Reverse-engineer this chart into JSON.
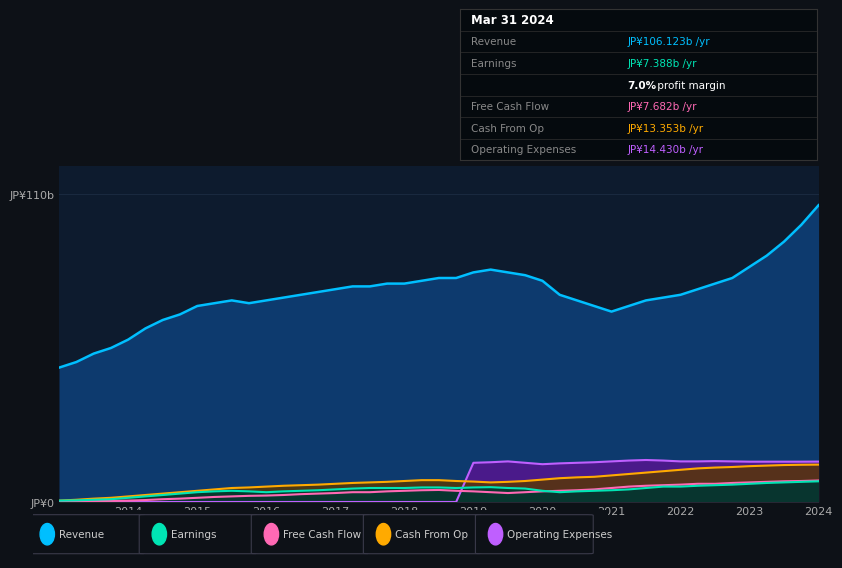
{
  "bg_color": "#0d1117",
  "plot_bg_color": "#0d1b2e",
  "years": [
    2013.0,
    2013.25,
    2013.5,
    2013.75,
    2014.0,
    2014.25,
    2014.5,
    2014.75,
    2015.0,
    2015.25,
    2015.5,
    2015.75,
    2016.0,
    2016.25,
    2016.5,
    2016.75,
    2017.0,
    2017.25,
    2017.5,
    2017.75,
    2018.0,
    2018.25,
    2018.5,
    2018.75,
    2019.0,
    2019.25,
    2019.5,
    2019.75,
    2020.0,
    2020.25,
    2020.5,
    2020.75,
    2021.0,
    2021.25,
    2021.5,
    2021.75,
    2022.0,
    2022.25,
    2022.5,
    2022.75,
    2023.0,
    2023.25,
    2023.5,
    2023.75,
    2024.0
  ],
  "revenue": [
    48,
    50,
    53,
    55,
    58,
    62,
    65,
    67,
    70,
    71,
    72,
    71,
    72,
    73,
    74,
    75,
    76,
    77,
    77,
    78,
    78,
    79,
    80,
    80,
    82,
    83,
    82,
    81,
    79,
    74,
    72,
    70,
    68,
    70,
    72,
    73,
    74,
    76,
    78,
    80,
    84,
    88,
    93,
    99,
    106
  ],
  "earnings": [
    0.5,
    0.6,
    0.8,
    1.0,
    1.5,
    2.0,
    2.5,
    3.0,
    3.5,
    3.8,
    4.0,
    3.8,
    3.5,
    3.8,
    4.0,
    4.2,
    4.5,
    4.8,
    5.0,
    5.0,
    5.0,
    5.2,
    5.2,
    5.0,
    5.2,
    5.3,
    5.0,
    4.8,
    4.0,
    3.5,
    3.8,
    4.0,
    4.2,
    4.5,
    5.0,
    5.5,
    5.5,
    5.8,
    6.0,
    6.2,
    6.5,
    6.8,
    7.0,
    7.2,
    7.388
  ],
  "free_cash_flow": [
    0.1,
    0.2,
    0.3,
    0.4,
    0.5,
    0.7,
    1.0,
    1.2,
    1.5,
    1.8,
    2.0,
    2.2,
    2.3,
    2.5,
    2.8,
    3.0,
    3.2,
    3.5,
    3.5,
    3.8,
    4.0,
    4.2,
    4.3,
    4.0,
    3.8,
    3.5,
    3.2,
    3.5,
    3.8,
    4.0,
    4.2,
    4.5,
    5.0,
    5.5,
    5.8,
    6.0,
    6.2,
    6.5,
    6.5,
    6.8,
    7.0,
    7.2,
    7.4,
    7.5,
    7.682
  ],
  "cash_from_op": [
    0.5,
    0.8,
    1.2,
    1.5,
    2.0,
    2.5,
    3.0,
    3.5,
    4.0,
    4.5,
    5.0,
    5.2,
    5.5,
    5.8,
    6.0,
    6.2,
    6.5,
    6.8,
    7.0,
    7.2,
    7.5,
    7.8,
    7.8,
    7.5,
    7.3,
    7.0,
    7.2,
    7.5,
    8.0,
    8.5,
    8.8,
    9.0,
    9.5,
    10.0,
    10.5,
    11.0,
    11.5,
    12.0,
    12.3,
    12.5,
    12.8,
    13.0,
    13.2,
    13.3,
    13.353
  ],
  "op_expenses": [
    0,
    0,
    0,
    0,
    0,
    0,
    0,
    0,
    0,
    0,
    0,
    0,
    0,
    0,
    0,
    0,
    0,
    0,
    0,
    0,
    0,
    0,
    0,
    0,
    14.0,
    14.2,
    14.5,
    14.0,
    13.5,
    13.8,
    14.0,
    14.2,
    14.5,
    14.8,
    15.0,
    14.8,
    14.5,
    14.5,
    14.6,
    14.5,
    14.4,
    14.4,
    14.4,
    14.4,
    14.43
  ],
  "ylim": [
    0,
    120
  ],
  "ytick_values": [
    0,
    110
  ],
  "ytick_labels": [
    "JP¥0",
    "JP¥110b"
  ],
  "xtick_years": [
    2014,
    2015,
    2016,
    2017,
    2018,
    2019,
    2020,
    2021,
    2022,
    2023,
    2024
  ],
  "revenue_line_color": "#00bfff",
  "revenue_fill_color": "#0d3a6e",
  "earnings_color": "#00e5b4",
  "fcf_color": "#ff69b4",
  "cashop_color": "#ffaa00",
  "opex_color": "#bf5fff",
  "opex_fill_color": "#4a1a8a",
  "grid_color": "#1a2a40",
  "legend_items": [
    "Revenue",
    "Earnings",
    "Free Cash Flow",
    "Cash From Op",
    "Operating Expenses"
  ],
  "legend_colors": [
    "#00bfff",
    "#00e5b4",
    "#ff69b4",
    "#ffaa00",
    "#bf5fff"
  ],
  "info_rows": [
    {
      "label": "Mar 31 2024",
      "value": "",
      "label_color": "#ffffff",
      "value_color": "#ffffff",
      "bold": true
    },
    {
      "label": "Revenue",
      "value": "JP¥106.123b /yr",
      "label_color": "#888888",
      "value_color": "#00bfff",
      "bold": false
    },
    {
      "label": "Earnings",
      "value": "JP¥7.388b /yr",
      "label_color": "#888888",
      "value_color": "#00e5b4",
      "bold": false
    },
    {
      "label": "",
      "value": "7.0% profit margin",
      "label_color": "#888888",
      "value_color": "#ffffff",
      "bold": false
    },
    {
      "label": "Free Cash Flow",
      "value": "JP¥7.682b /yr",
      "label_color": "#888888",
      "value_color": "#ff69b4",
      "bold": false
    },
    {
      "label": "Cash From Op",
      "value": "JP¥13.353b /yr",
      "label_color": "#888888",
      "value_color": "#ffaa00",
      "bold": false
    },
    {
      "label": "Operating Expenses",
      "value": "JP¥14.430b /yr",
      "label_color": "#888888",
      "value_color": "#bf5fff",
      "bold": false
    }
  ]
}
